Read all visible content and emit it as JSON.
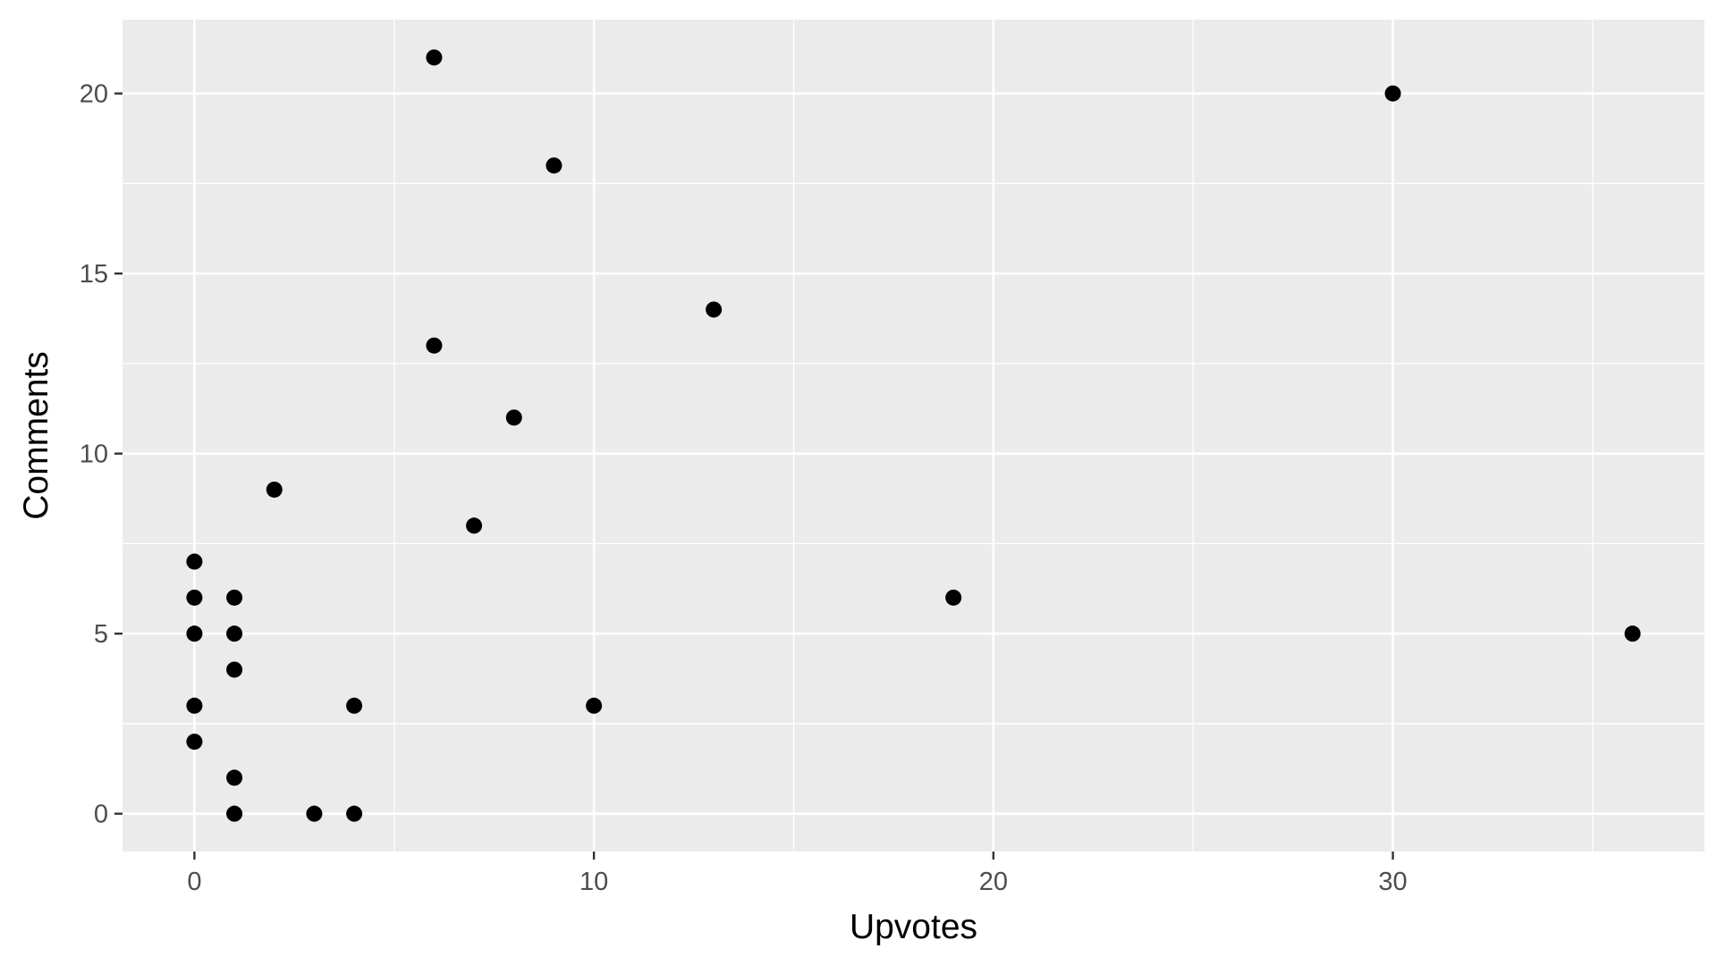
{
  "chart_data": {
    "type": "scatter",
    "title": "",
    "xlabel": "Upvotes",
    "ylabel": "Comments",
    "xlim": [
      -1.8,
      37.8
    ],
    "ylim": [
      -1.05,
      22.05
    ],
    "x_ticks": [
      0,
      10,
      20,
      30
    ],
    "y_ticks": [
      0,
      5,
      10,
      15,
      20
    ],
    "x_minor": [
      5,
      15,
      25,
      35
    ],
    "y_minor": [
      2.5,
      7.5,
      12.5,
      17.5
    ],
    "grid": true,
    "legend": "none",
    "colors": {
      "panel": "#ebebeb",
      "grid": "#ffffff",
      "point": "#000000",
      "tick_text": "#4d4d4d",
      "tick_mark": "#333333"
    },
    "points": [
      {
        "x": 0,
        "y": 7
      },
      {
        "x": 0,
        "y": 6
      },
      {
        "x": 0,
        "y": 5
      },
      {
        "x": 0,
        "y": 3
      },
      {
        "x": 0,
        "y": 2
      },
      {
        "x": 1,
        "y": 6
      },
      {
        "x": 1,
        "y": 5
      },
      {
        "x": 1,
        "y": 4
      },
      {
        "x": 1,
        "y": 1
      },
      {
        "x": 1,
        "y": 0
      },
      {
        "x": 2,
        "y": 9
      },
      {
        "x": 3,
        "y": 0
      },
      {
        "x": 4,
        "y": 3
      },
      {
        "x": 4,
        "y": 0
      },
      {
        "x": 6,
        "y": 21
      },
      {
        "x": 6,
        "y": 13
      },
      {
        "x": 7,
        "y": 8
      },
      {
        "x": 8,
        "y": 11
      },
      {
        "x": 9,
        "y": 18
      },
      {
        "x": 10,
        "y": 3
      },
      {
        "x": 13,
        "y": 14
      },
      {
        "x": 19,
        "y": 6
      },
      {
        "x": 30,
        "y": 20
      },
      {
        "x": 36,
        "y": 5
      }
    ]
  }
}
